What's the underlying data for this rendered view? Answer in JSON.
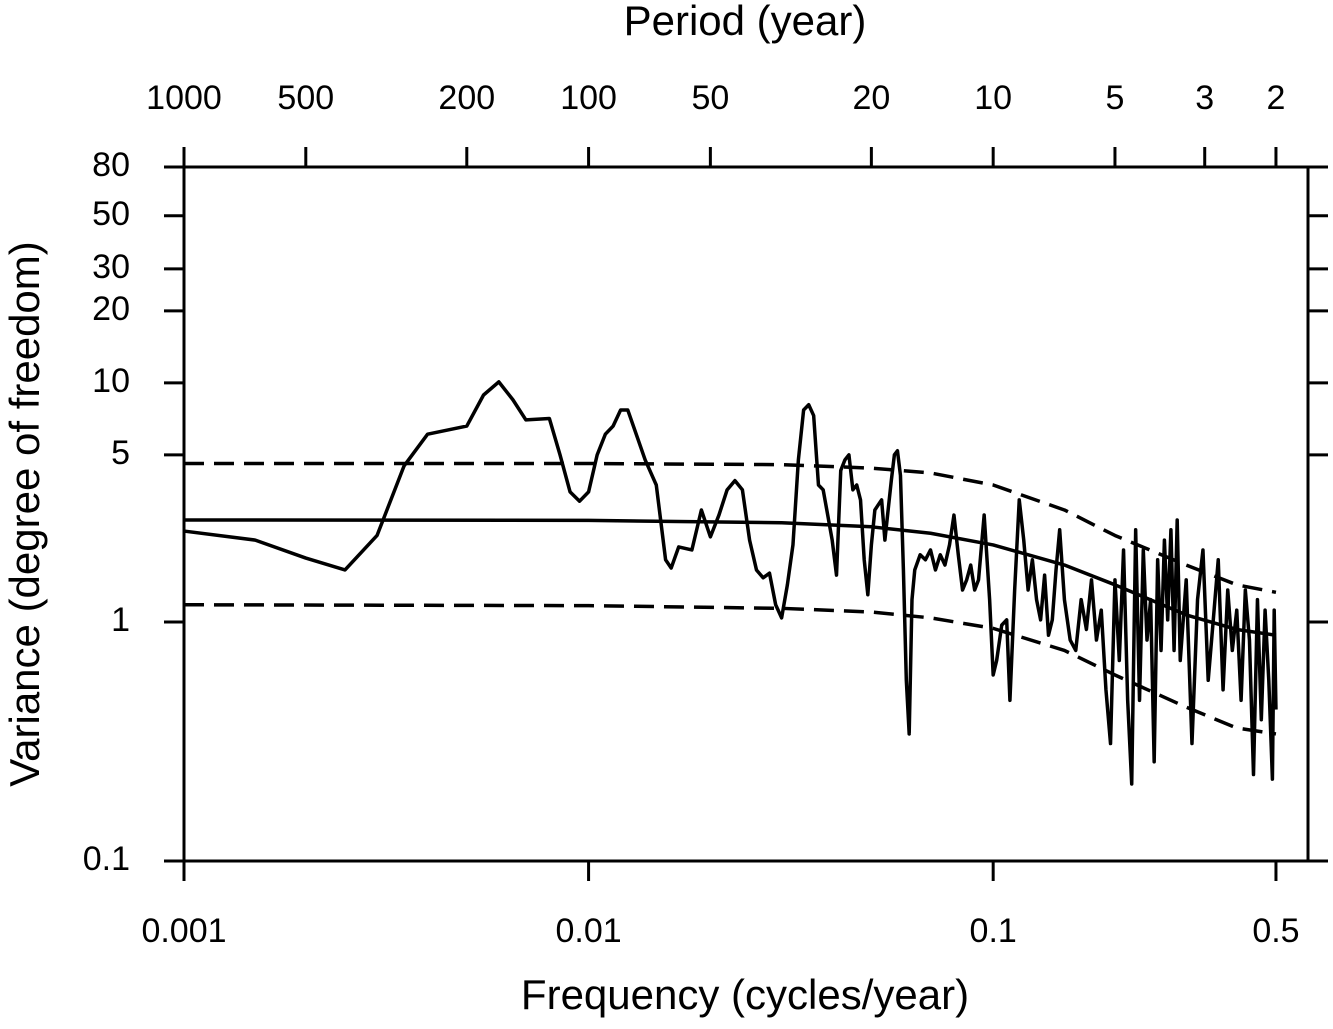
{
  "chart_data": {
    "type": "line",
    "log_x": true,
    "log_y": true,
    "xlabel": "Frequency (cycles/year)",
    "x2label": "Period (year)",
    "ylabel": "Variance (degree of freedom)",
    "xlim": [
      0.001,
      0.6
    ],
    "ylim": [
      0.1,
      80
    ],
    "xticks": [
      0.001,
      0.01,
      0.1,
      0.5
    ],
    "yticks": [
      0.1,
      1,
      5,
      10,
      20,
      30,
      50,
      80
    ],
    "x2ticks": [
      1000,
      500,
      200,
      100,
      50,
      20,
      10,
      5,
      3,
      2
    ],
    "series": [
      {
        "color": "#000000",
        "dashed": false,
        "x": [
          0.001,
          0.0015,
          0.002,
          0.0025,
          0.003,
          0.0035,
          0.004,
          0.005,
          0.0055,
          0.006,
          0.0065,
          0.007,
          0.008,
          0.0085,
          0.009,
          0.0095,
          0.01,
          0.0105,
          0.011,
          0.0115,
          0.012,
          0.0125,
          0.0138,
          0.0147,
          0.0155,
          0.016,
          0.0167,
          0.018,
          0.019,
          0.02,
          0.021,
          0.022,
          0.023,
          0.024,
          0.025,
          0.026,
          0.027,
          0.028,
          0.029,
          0.03,
          0.031,
          0.032,
          0.033,
          0.034,
          0.035,
          0.036,
          0.037,
          0.038,
          0.039,
          0.04,
          0.041,
          0.042,
          0.043,
          0.044,
          0.045,
          0.046,
          0.047,
          0.048,
          0.049,
          0.05,
          0.051,
          0.052,
          0.053,
          0.054,
          0.055,
          0.056,
          0.057,
          0.058,
          0.059,
          0.06,
          0.061,
          0.062,
          0.063,
          0.064,
          0.066,
          0.068,
          0.07,
          0.072,
          0.074,
          0.076,
          0.078,
          0.08,
          0.082,
          0.084,
          0.086,
          0.088,
          0.09,
          0.092,
          0.095,
          0.098,
          0.1,
          0.102,
          0.105,
          0.108,
          0.11,
          0.113,
          0.116,
          0.119,
          0.122,
          0.125,
          0.128,
          0.131,
          0.134,
          0.137,
          0.14,
          0.143,
          0.146,
          0.15,
          0.155,
          0.16,
          0.165,
          0.17,
          0.175,
          0.18,
          0.185,
          0.19,
          0.195,
          0.2,
          0.205,
          0.21,
          0.215,
          0.22,
          0.225,
          0.23,
          0.235,
          0.24,
          0.245,
          0.25,
          0.255,
          0.26,
          0.265,
          0.27,
          0.275,
          0.28,
          0.285,
          0.29,
          0.3,
          0.31,
          0.32,
          0.33,
          0.34,
          0.35,
          0.36,
          0.37,
          0.38,
          0.39,
          0.4,
          0.41,
          0.42,
          0.43,
          0.44,
          0.45,
          0.46,
          0.47,
          0.48,
          0.49,
          0.495,
          0.5
        ],
        "values": [
          2.4,
          2.2,
          1.85,
          1.65,
          2.3,
          4.5,
          6.1,
          6.6,
          8.9,
          10.1,
          8.5,
          7.0,
          7.1,
          5.0,
          3.5,
          3.2,
          3.5,
          5.0,
          6.1,
          6.6,
          7.7,
          7.7,
          4.76,
          3.74,
          1.82,
          1.68,
          2.06,
          2.0,
          2.94,
          2.27,
          2.8,
          3.57,
          3.9,
          3.57,
          2.2,
          1.65,
          1.53,
          1.6,
          1.18,
          1.04,
          1.43,
          2.1,
          4.76,
          7.7,
          8.1,
          7.3,
          3.74,
          3.57,
          2.8,
          2.2,
          1.57,
          4.3,
          4.76,
          5.0,
          3.57,
          3.74,
          3.24,
          1.82,
          1.3,
          2.1,
          2.94,
          3.09,
          3.24,
          2.2,
          2.94,
          3.9,
          5.0,
          5.2,
          4.1,
          1.65,
          0.57,
          0.34,
          1.24,
          1.65,
          1.91,
          1.82,
          2.0,
          1.65,
          1.91,
          1.73,
          2.1,
          2.8,
          1.91,
          1.36,
          1.5,
          1.73,
          1.36,
          1.5,
          2.8,
          1.24,
          0.6,
          0.69,
          0.97,
          1.02,
          0.47,
          1.36,
          3.24,
          2.2,
          1.36,
          1.82,
          1.24,
          1.02,
          1.57,
          0.88,
          1.02,
          1.65,
          2.43,
          1.24,
          0.84,
          0.76,
          1.24,
          0.93,
          1.5,
          0.84,
          1.12,
          0.52,
          0.31,
          1.5,
          0.69,
          2.0,
          0.47,
          0.21,
          2.43,
          0.47,
          2.0,
          0.84,
          1.24,
          0.26,
          1.82,
          0.76,
          2.2,
          1.02,
          2.43,
          0.76,
          2.67,
          0.69,
          1.5,
          0.31,
          1.24,
          2.0,
          0.57,
          1.02,
          1.82,
          0.52,
          1.36,
          0.76,
          1.12,
          0.47,
          1.36,
          0.84,
          0.23,
          1.24,
          0.39,
          1.12,
          0.57,
          0.22,
          1.12,
          0.43
        ]
      },
      {
        "color": "#000000",
        "dashed": false,
        "x": [
          0.001,
          0.01,
          0.03,
          0.05,
          0.07,
          0.1,
          0.15,
          0.2,
          0.3,
          0.4,
          0.5
        ],
        "values": [
          2.67,
          2.66,
          2.6,
          2.5,
          2.35,
          2.1,
          1.73,
          1.43,
          1.07,
          0.93,
          0.88
        ]
      },
      {
        "color": "#000000",
        "dashed": true,
        "x": [
          0.001,
          0.01,
          0.03,
          0.05,
          0.07,
          0.1,
          0.15,
          0.2,
          0.3,
          0.4,
          0.5
        ],
        "values": [
          4.6,
          4.6,
          4.55,
          4.4,
          4.2,
          3.74,
          2.94,
          2.3,
          1.73,
          1.43,
          1.33
        ]
      },
      {
        "color": "#000000",
        "dashed": true,
        "x": [
          0.001,
          0.01,
          0.03,
          0.05,
          0.07,
          0.1,
          0.15,
          0.2,
          0.3,
          0.4,
          0.5
        ],
        "values": [
          1.18,
          1.17,
          1.14,
          1.1,
          1.04,
          0.94,
          0.76,
          0.6,
          0.44,
          0.36,
          0.34
        ]
      }
    ]
  }
}
